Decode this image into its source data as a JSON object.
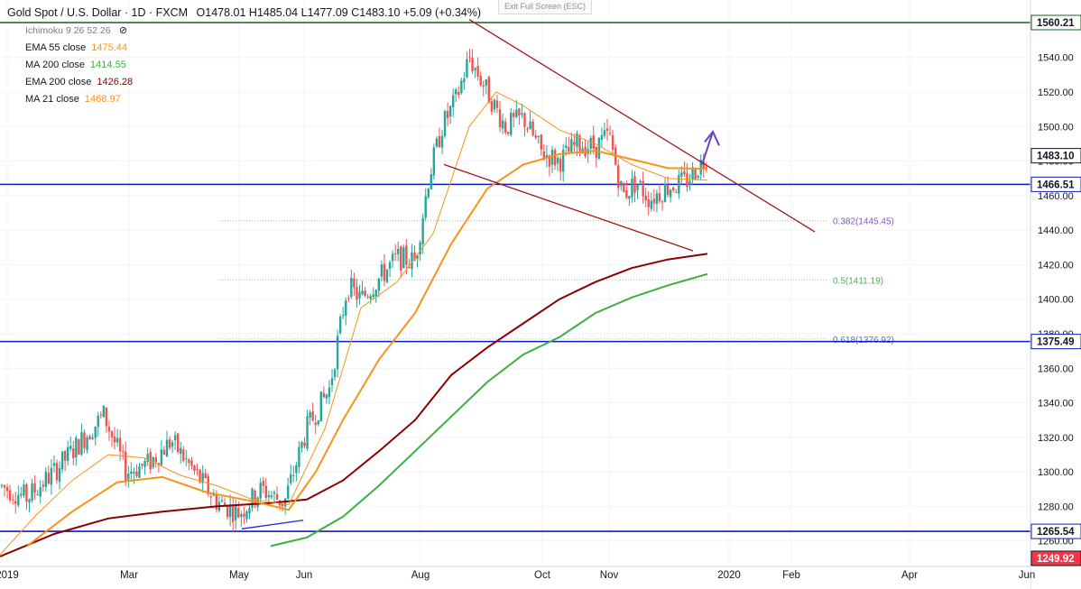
{
  "header": {
    "symbol": "Gold Spot / U.S. Dollar · 1D · FXCM",
    "ohlc": "O1478.01  H1485.04  L1477.09  C1483.10  +5.09 (+0.34%)",
    "ichimoku": "Ichimoku 9 26 52 26",
    "exit_fullscreen": "Exit Full Screen (ESC)"
  },
  "indicators": [
    {
      "label": "EMA 55 close",
      "value": "1475.44",
      "color": "#f7931a"
    },
    {
      "label": "MA 200 close",
      "value": "1414.55",
      "color": "#3cb043"
    },
    {
      "label": "EMA 200 close",
      "value": "1426.28",
      "color": "#8b0000"
    },
    {
      "label": "MA 21 close",
      "value": "1468.97",
      "color": "#f7931a"
    }
  ],
  "chart_data": {
    "type": "candlestick",
    "ylim": [
      1250,
      1562
    ],
    "x_ticks": [
      "2019",
      "Mar",
      "May",
      "Jun",
      "Aug",
      "Oct",
      "Nov",
      "2020",
      "Feb",
      "Apr",
      "Jun"
    ],
    "y_ticks": [
      1260,
      1280,
      1300,
      1320,
      1340,
      1360,
      1380,
      1400,
      1420,
      1440,
      1460,
      1480,
      1500,
      1520,
      1540
    ],
    "price_labels": [
      {
        "text": "1560.21",
        "value": 1560.21,
        "bg": "#ffffff",
        "fg": "#131722",
        "line": "#1b5e20"
      },
      {
        "text": "1483.10",
        "value": 1483.1,
        "bg": "#ffffff",
        "fg": "#131722",
        "line": null
      },
      {
        "text": "1466.51",
        "value": 1466.51,
        "bg": "#ffffff",
        "fg": "#131722",
        "line": "#0d1dbf"
      },
      {
        "text": "1375.49",
        "value": 1375.49,
        "bg": "#ffffff",
        "fg": "#131722",
        "line": "#0d1dbf"
      },
      {
        "text": "1265.54",
        "value": 1265.54,
        "bg": "#ffffff",
        "fg": "#131722",
        "line": "#0d1dbf"
      },
      {
        "text": "1249.92",
        "value": 1249.92,
        "bg": "#f23645",
        "fg": "#ffffff",
        "line": null
      }
    ],
    "fib_levels": [
      {
        "text": "0.382(1445.45)",
        "value": 1445.45,
        "color": "#7e57c2"
      },
      {
        "text": "0.5(1411.19)",
        "value": 1411.19,
        "color": "#4caf50"
      },
      {
        "text": "0.618(1376.92)",
        "value": 1376.92,
        "color": "#5c6bc0"
      }
    ],
    "series": [
      {
        "name": "EMA 200 close",
        "color": "#8b0000",
        "points": [
          [
            0,
            1251
          ],
          [
            60,
            1264
          ],
          [
            120,
            1273
          ],
          [
            180,
            1277
          ],
          [
            240,
            1280
          ],
          [
            300,
            1282
          ],
          [
            340,
            1284
          ],
          [
            380,
            1295
          ],
          [
            420,
            1312
          ],
          [
            460,
            1330
          ],
          [
            500,
            1356
          ],
          [
            540,
            1372
          ],
          [
            580,
            1386
          ],
          [
            620,
            1400
          ],
          [
            660,
            1410
          ],
          [
            700,
            1418
          ],
          [
            740,
            1423
          ],
          [
            784,
            1426.28
          ]
        ]
      },
      {
        "name": "MA 200 close",
        "color": "#3cb043",
        "points": [
          [
            300,
            1257
          ],
          [
            340,
            1262
          ],
          [
            380,
            1274
          ],
          [
            420,
            1292
          ],
          [
            460,
            1312
          ],
          [
            500,
            1332
          ],
          [
            540,
            1352
          ],
          [
            580,
            1368
          ],
          [
            620,
            1378
          ],
          [
            660,
            1392
          ],
          [
            700,
            1401
          ],
          [
            740,
            1408
          ],
          [
            784,
            1414.55
          ]
        ]
      },
      {
        "name": "EMA 55 close",
        "color": "#f7931a",
        "points": [
          [
            30,
            1257
          ],
          [
            80,
            1277
          ],
          [
            130,
            1294
          ],
          [
            180,
            1297
          ],
          [
            230,
            1288
          ],
          [
            280,
            1283
          ],
          [
            320,
            1278
          ],
          [
            350,
            1300
          ],
          [
            380,
            1330
          ],
          [
            420,
            1365
          ],
          [
            460,
            1392
          ],
          [
            500,
            1432
          ],
          [
            540,
            1464
          ],
          [
            580,
            1478
          ],
          [
            620,
            1484
          ],
          [
            660,
            1486
          ],
          [
            700,
            1481
          ],
          [
            740,
            1476
          ],
          [
            784,
            1475.44
          ]
        ]
      },
      {
        "name": "MA 21 close",
        "color": "#f7931a",
        "points": [
          [
            0,
            1252
          ],
          [
            40,
            1275
          ],
          [
            80,
            1295
          ],
          [
            120,
            1310
          ],
          [
            160,
            1308
          ],
          [
            200,
            1298
          ],
          [
            240,
            1292
          ],
          [
            280,
            1284
          ],
          [
            320,
            1281
          ],
          [
            360,
            1325
          ],
          [
            400,
            1395
          ],
          [
            440,
            1410
          ],
          [
            480,
            1438
          ],
          [
            520,
            1500
          ],
          [
            550,
            1520
          ],
          [
            580,
            1512
          ],
          [
            620,
            1498
          ],
          [
            660,
            1490
          ],
          [
            700,
            1478
          ],
          [
            740,
            1470
          ],
          [
            784,
            1468.97
          ]
        ]
      }
    ],
    "candles_anchor": [
      [
        0,
        1292
      ],
      [
        30,
        1285
      ],
      [
        60,
        1300
      ],
      [
        90,
        1318
      ],
      [
        115,
        1333
      ],
      [
        140,
        1300
      ],
      [
        165,
        1305
      ],
      [
        190,
        1318
      ],
      [
        215,
        1300
      ],
      [
        240,
        1283
      ],
      [
        265,
        1276
      ],
      [
        290,
        1290
      ],
      [
        315,
        1282
      ],
      [
        340,
        1325
      ],
      [
        365,
        1348
      ],
      [
        385,
        1408
      ],
      [
        400,
        1400
      ],
      [
        420,
        1412
      ],
      [
        440,
        1424
      ],
      [
        460,
        1422
      ],
      [
        475,
        1470
      ],
      [
        490,
        1500
      ],
      [
        505,
        1515
      ],
      [
        520,
        1540
      ],
      [
        540,
        1520
      ],
      [
        560,
        1500
      ],
      [
        580,
        1505
      ],
      [
        600,
        1485
      ],
      [
        620,
        1480
      ],
      [
        640,
        1490
      ],
      [
        660,
        1488
      ],
      [
        675,
        1495
      ],
      [
        690,
        1460
      ],
      [
        705,
        1468
      ],
      [
        720,
        1458
      ],
      [
        740,
        1465
      ],
      [
        760,
        1468
      ],
      [
        784,
        1483.1
      ]
    ],
    "trend_lines": [
      {
        "from": [
          520,
          1562
        ],
        "to": [
          903,
          1439
        ],
        "color": "#a31515"
      },
      {
        "from": [
          492,
          1478
        ],
        "to": [
          768,
          1428
        ],
        "color": "#a31515"
      },
      {
        "from": [
          268,
          1267
        ],
        "to": [
          336,
          1272
        ],
        "color": "#1a2ecf"
      }
    ]
  }
}
